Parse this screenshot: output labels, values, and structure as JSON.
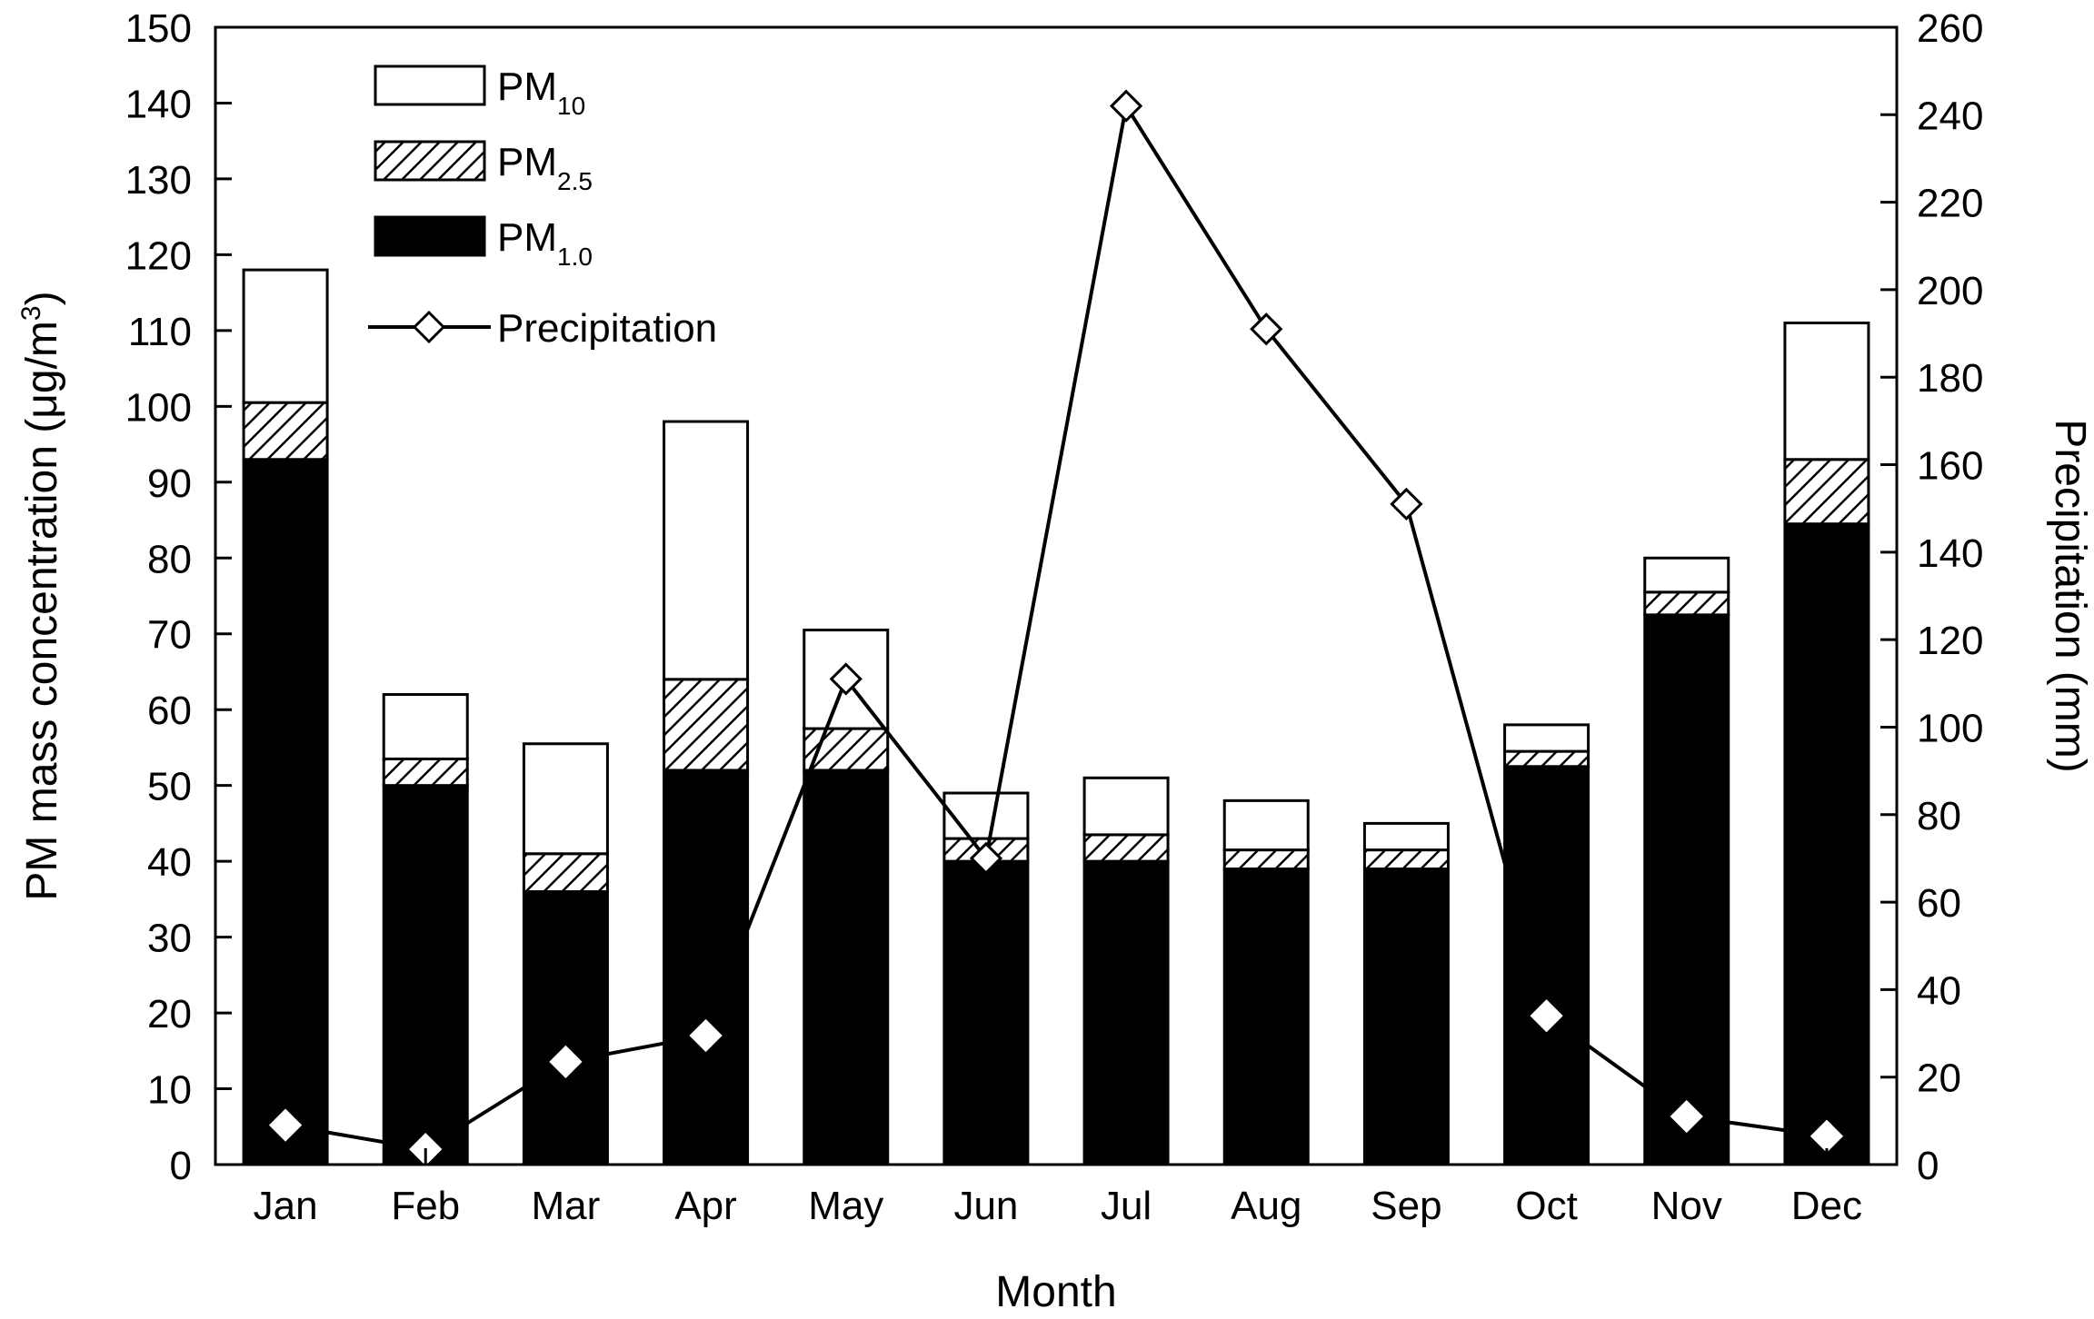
{
  "chart_data": {
    "type": "bar",
    "subtype": "stacked-bar-with-line",
    "categories": [
      "Jan",
      "Feb",
      "Mar",
      "Apr",
      "May",
      "Jun",
      "Jul",
      "Aug",
      "Sep",
      "Oct",
      "Nov",
      "Dec"
    ],
    "series": [
      {
        "name": "PM1.0",
        "label_main": "PM",
        "label_sub": "1.0",
        "pattern": "solid-black",
        "values": [
          93,
          50,
          36,
          52,
          52,
          40,
          40,
          39,
          39,
          52.5,
          72.5,
          84.5
        ]
      },
      {
        "name": "PM2.5",
        "label_main": "PM",
        "label_sub": "2.5",
        "pattern": "hatched",
        "values": [
          100.5,
          53.5,
          41,
          64,
          57.5,
          43,
          43.5,
          41.5,
          41.5,
          54.5,
          75.5,
          93
        ]
      },
      {
        "name": "PM10",
        "label_main": "PM",
        "label_sub": "10",
        "pattern": "white",
        "values": [
          118,
          62,
          55.5,
          98,
          70.5,
          49,
          51,
          48,
          45,
          58,
          80,
          111
        ]
      }
    ],
    "line_series": {
      "name": "Precipitation",
      "label": "Precipitation",
      "axis": "right",
      "values": [
        9,
        3.5,
        23.5,
        29.5,
        111,
        70,
        242,
        191,
        151,
        34,
        11,
        6.5
      ]
    },
    "xlabel": "Month",
    "ylabel_left": "PM mass concentration (μg/m³)",
    "ylabel_left_main": "PM mass concentration (",
    "ylabel_left_unit": "μg/m",
    "ylabel_left_sup": "3",
    "ylabel_left_close": ")",
    "ylabel_right": "Precipitation (mm)",
    "ylim_left": [
      0,
      150
    ],
    "yticks_left": [
      0,
      10,
      20,
      30,
      40,
      50,
      60,
      70,
      80,
      90,
      100,
      110,
      120,
      130,
      140,
      150
    ],
    "ylim_right": [
      0,
      260
    ],
    "yticks_right": [
      0,
      20,
      40,
      60,
      80,
      100,
      120,
      140,
      160,
      180,
      200,
      220,
      240,
      260
    ],
    "legend_position": "top-left",
    "grid": false
  }
}
